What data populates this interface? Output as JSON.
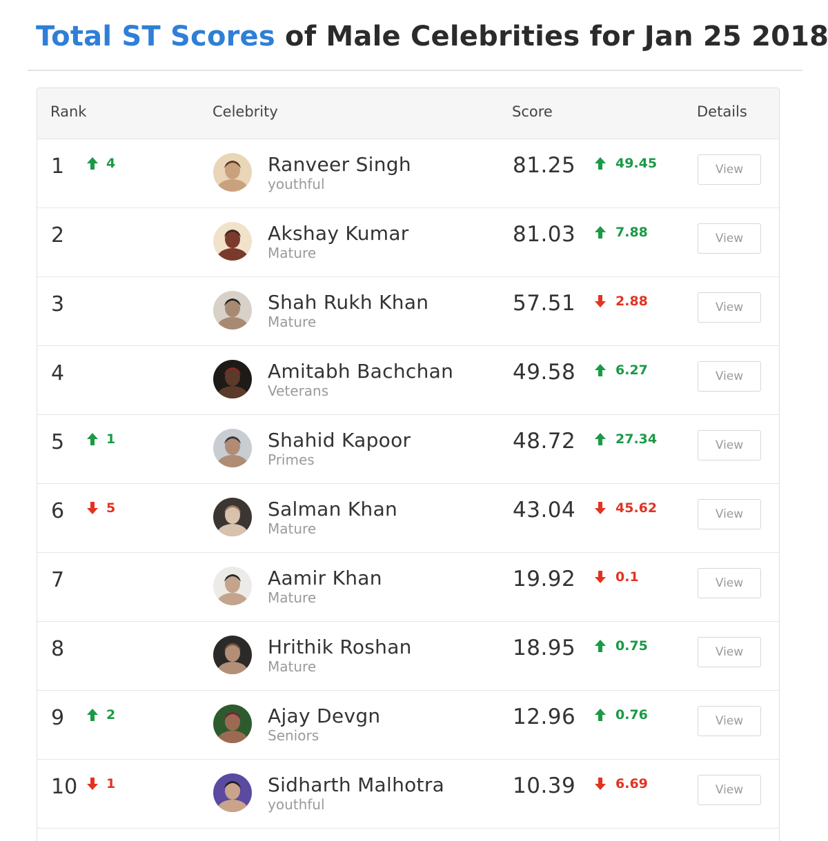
{
  "page": {
    "title_accent": "Total ST Scores",
    "title_rest": " of Male Celebrities for Jan 25 2018"
  },
  "colors": {
    "accent": "#2f7fd6",
    "up": "#1a9a45",
    "down": "#e23322"
  },
  "table": {
    "headers": {
      "rank": "Rank",
      "celebrity": "Celebrity",
      "score": "Score",
      "details": "Details"
    },
    "rows": [
      {
        "rank": "1",
        "rank_dir": "up",
        "rank_change": "4",
        "name": "Ranveer Singh",
        "category": "youthful",
        "score": "81.25",
        "score_dir": "up",
        "score_change": "49.45",
        "button": "View"
      },
      {
        "rank": "2",
        "rank_dir": "",
        "rank_change": "",
        "name": "Akshay Kumar",
        "category": "Mature",
        "score": "81.03",
        "score_dir": "up",
        "score_change": "7.88",
        "button": "View"
      },
      {
        "rank": "3",
        "rank_dir": "",
        "rank_change": "",
        "name": "Shah Rukh Khan",
        "category": "Mature",
        "score": "57.51",
        "score_dir": "down",
        "score_change": "2.88",
        "button": "View"
      },
      {
        "rank": "4",
        "rank_dir": "",
        "rank_change": "",
        "name": "Amitabh Bachchan",
        "category": "Veterans",
        "score": "49.58",
        "score_dir": "up",
        "score_change": "6.27",
        "button": "View"
      },
      {
        "rank": "5",
        "rank_dir": "up",
        "rank_change": "1",
        "name": "Shahid Kapoor",
        "category": "Primes",
        "score": "48.72",
        "score_dir": "up",
        "score_change": "27.34",
        "button": "View"
      },
      {
        "rank": "6",
        "rank_dir": "down",
        "rank_change": "5",
        "name": "Salman Khan",
        "category": "Mature",
        "score": "43.04",
        "score_dir": "down",
        "score_change": "45.62",
        "button": "View"
      },
      {
        "rank": "7",
        "rank_dir": "",
        "rank_change": "",
        "name": "Aamir Khan",
        "category": "Mature",
        "score": "19.92",
        "score_dir": "down",
        "score_change": "0.1",
        "button": "View"
      },
      {
        "rank": "8",
        "rank_dir": "",
        "rank_change": "",
        "name": "Hrithik Roshan",
        "category": "Mature",
        "score": "18.95",
        "score_dir": "up",
        "score_change": "0.75",
        "button": "View"
      },
      {
        "rank": "9",
        "rank_dir": "up",
        "rank_change": "2",
        "name": "Ajay Devgn",
        "category": "Seniors",
        "score": "12.96",
        "score_dir": "up",
        "score_change": "0.76",
        "button": "View"
      },
      {
        "rank": "10",
        "rank_dir": "down",
        "rank_change": "1",
        "name": "Sidharth Malhotra",
        "category": "youthful",
        "score": "10.39",
        "score_dir": "down",
        "score_change": "6.69",
        "button": "View"
      }
    ]
  }
}
